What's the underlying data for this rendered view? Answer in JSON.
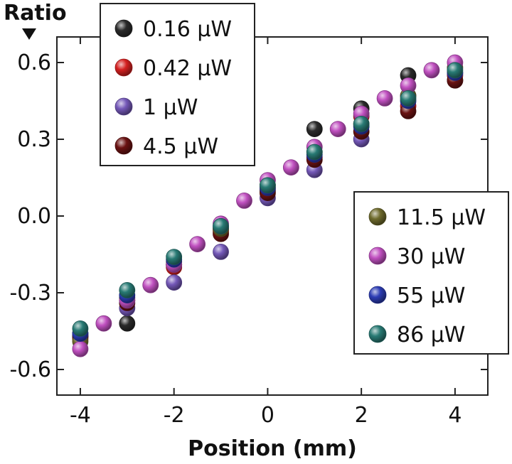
{
  "chart_data": {
    "type": "scatter",
    "title": "",
    "xlabel": "Position (mm)",
    "ylabel": "Ratio",
    "xlim": [
      -4.5,
      4.7
    ],
    "ylim": [
      -0.7,
      0.7
    ],
    "x_ticks": [
      {
        "value": -4,
        "label": "-4"
      },
      {
        "value": -2,
        "label": "-2"
      },
      {
        "value": 0,
        "label": "0"
      },
      {
        "value": 2,
        "label": "2"
      },
      {
        "value": 4,
        "label": "4"
      }
    ],
    "y_ticks": [
      {
        "value": 0.6,
        "label": "0.6"
      },
      {
        "value": 0.3,
        "label": "0.3"
      },
      {
        "value": 0.0,
        "label": "0.0"
      },
      {
        "value": -0.3,
        "label": "-0.3"
      },
      {
        "value": -0.6,
        "label": "-0.6"
      }
    ],
    "series": [
      {
        "name": "0.16 μW",
        "color": "#2a2a2a",
        "points": [
          {
            "x": -4,
            "y": -0.47
          },
          {
            "x": -3,
            "y": -0.42
          },
          {
            "x": -2,
            "y": -0.19
          },
          {
            "x": -1,
            "y": -0.05
          },
          {
            "x": 0,
            "y": 0.1
          },
          {
            "x": 1,
            "y": 0.34
          },
          {
            "x": 2,
            "y": 0.42
          },
          {
            "x": 3,
            "y": 0.55
          },
          {
            "x": 4,
            "y": 0.53
          }
        ]
      },
      {
        "name": "0.42 μW",
        "color": "#d42020",
        "points": [
          {
            "x": -4,
            "y": -0.48
          },
          {
            "x": -3,
            "y": -0.33
          },
          {
            "x": -2,
            "y": -0.2
          },
          {
            "x": -1,
            "y": -0.06
          },
          {
            "x": 0,
            "y": 0.11
          },
          {
            "x": 1,
            "y": 0.23
          },
          {
            "x": 2,
            "y": 0.39
          },
          {
            "x": 3,
            "y": 0.43
          },
          {
            "x": 4,
            "y": 0.55
          }
        ]
      },
      {
        "name": "1 μW",
        "color": "#7458b8",
        "points": [
          {
            "x": -4,
            "y": -0.46
          },
          {
            "x": -3,
            "y": -0.36
          },
          {
            "x": -2,
            "y": -0.26
          },
          {
            "x": -1,
            "y": -0.14
          },
          {
            "x": 0,
            "y": 0.07
          },
          {
            "x": 1,
            "y": 0.18
          },
          {
            "x": 2,
            "y": 0.3
          },
          {
            "x": 3,
            "y": 0.47
          },
          {
            "x": 4,
            "y": 0.56
          }
        ]
      },
      {
        "name": "4.5 μW",
        "color": "#6a1212",
        "points": [
          {
            "x": -4,
            "y": -0.47
          },
          {
            "x": -3,
            "y": -0.34
          },
          {
            "x": -2,
            "y": -0.19
          },
          {
            "x": -1,
            "y": -0.07
          },
          {
            "x": 0,
            "y": 0.09
          },
          {
            "x": 1,
            "y": 0.22
          },
          {
            "x": 2,
            "y": 0.33
          },
          {
            "x": 3,
            "y": 0.41
          },
          {
            "x": 4,
            "y": 0.53
          }
        ]
      },
      {
        "name": "11.5 μW",
        "color": "#6e6a2c",
        "points": [
          {
            "x": -4,
            "y": -0.49
          },
          {
            "x": -3,
            "y": -0.32
          },
          {
            "x": -2,
            "y": -0.18
          },
          {
            "x": -1,
            "y": -0.05
          },
          {
            "x": 0,
            "y": 0.12
          },
          {
            "x": 1,
            "y": 0.25
          },
          {
            "x": 2,
            "y": 0.36
          },
          {
            "x": 3,
            "y": 0.47
          },
          {
            "x": 4,
            "y": 0.58
          }
        ]
      },
      {
        "name": "30 μW",
        "color": "#c050c0",
        "points": [
          {
            "x": -4,
            "y": -0.52
          },
          {
            "x": -3.5,
            "y": -0.42
          },
          {
            "x": -3,
            "y": -0.33
          },
          {
            "x": -2.5,
            "y": -0.27
          },
          {
            "x": -2,
            "y": -0.19
          },
          {
            "x": -1.5,
            "y": -0.11
          },
          {
            "x": -1,
            "y": -0.03
          },
          {
            "x": -0.5,
            "y": 0.06
          },
          {
            "x": 0,
            "y": 0.14
          },
          {
            "x": 0.5,
            "y": 0.19
          },
          {
            "x": 1,
            "y": 0.27
          },
          {
            "x": 1.5,
            "y": 0.34
          },
          {
            "x": 2,
            "y": 0.4
          },
          {
            "x": 2.5,
            "y": 0.46
          },
          {
            "x": 3,
            "y": 0.51
          },
          {
            "x": 3.5,
            "y": 0.57
          },
          {
            "x": 4,
            "y": 0.6
          }
        ]
      },
      {
        "name": "55 μW",
        "color": "#2c3cb4",
        "points": [
          {
            "x": -4,
            "y": -0.46
          },
          {
            "x": -3,
            "y": -0.31
          },
          {
            "x": -2,
            "y": -0.17
          },
          {
            "x": -1,
            "y": -0.04
          },
          {
            "x": 0,
            "y": 0.11
          },
          {
            "x": 1,
            "y": 0.24
          },
          {
            "x": 2,
            "y": 0.35
          },
          {
            "x": 3,
            "y": 0.45
          },
          {
            "x": 4,
            "y": 0.56
          }
        ]
      },
      {
        "name": "86 μW",
        "color": "#287a74",
        "points": [
          {
            "x": -4,
            "y": -0.44
          },
          {
            "x": -3,
            "y": -0.29
          },
          {
            "x": -2,
            "y": -0.16
          },
          {
            "x": -1,
            "y": -0.04
          },
          {
            "x": 0,
            "y": 0.12
          },
          {
            "x": 1,
            "y": 0.25
          },
          {
            "x": 2,
            "y": 0.36
          },
          {
            "x": 3,
            "y": 0.46
          },
          {
            "x": 4,
            "y": 0.57
          }
        ]
      }
    ],
    "legends": [
      {
        "placement": "top-left",
        "series": [
          "0.16 μW",
          "0.42 μW",
          "1 μW",
          "4.5 μW"
        ]
      },
      {
        "placement": "bottom-right",
        "series": [
          "11.5 μW",
          "30 μW",
          "55 μW",
          "86 μW"
        ]
      }
    ]
  }
}
